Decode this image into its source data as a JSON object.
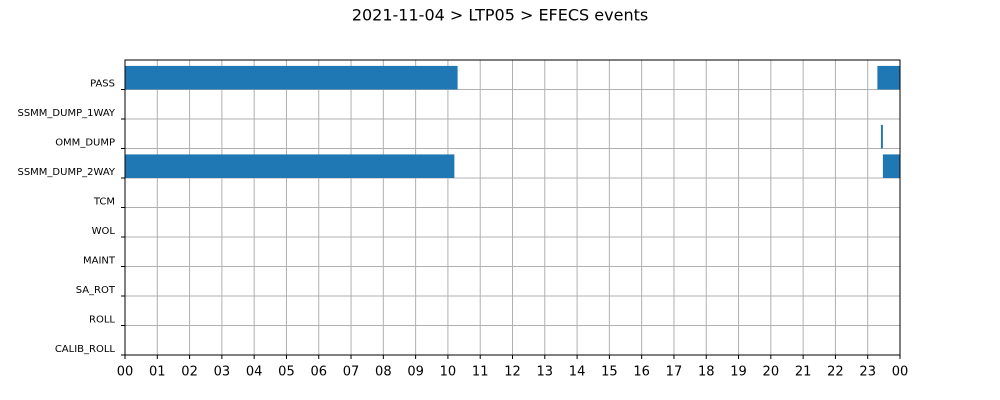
{
  "chart_data": {
    "type": "timeline",
    "title": "2021-11-04 > LTP05 > EFECS events",
    "categories": [
      "PASS",
      "SSMM_DUMP_1WAY",
      "OMM_DUMP",
      "SSMM_DUMP_2WAY",
      "TCM",
      "WOL",
      "MAINT",
      "SA_ROT",
      "ROLL",
      "CALIB_ROLL"
    ],
    "values": [
      [
        [
          0,
          10.3
        ],
        [
          23.3,
          24
        ]
      ],
      [],
      [
        [
          23.41,
          23.47
        ]
      ],
      [
        [
          0,
          10.2
        ],
        [
          23.47,
          24
        ]
      ],
      [],
      [],
      [],
      [],
      [],
      []
    ],
    "color": "#1f77b4",
    "xlim": [
      0,
      24
    ],
    "xticks": [
      {
        "value": 0,
        "label": "00"
      },
      {
        "value": 1,
        "label": "01"
      },
      {
        "value": 2,
        "label": "02"
      },
      {
        "value": 3,
        "label": "03"
      },
      {
        "value": 4,
        "label": "04"
      },
      {
        "value": 5,
        "label": "05"
      },
      {
        "value": 6,
        "label": "06"
      },
      {
        "value": 7,
        "label": "07"
      },
      {
        "value": 8,
        "label": "08"
      },
      {
        "value": 9,
        "label": "09"
      },
      10,
      11,
      12,
      13,
      14,
      15,
      16,
      17,
      18,
      19,
      20,
      21,
      22,
      23,
      {
        "value": 24,
        "label": "00"
      }
    ],
    "grid": true
  }
}
